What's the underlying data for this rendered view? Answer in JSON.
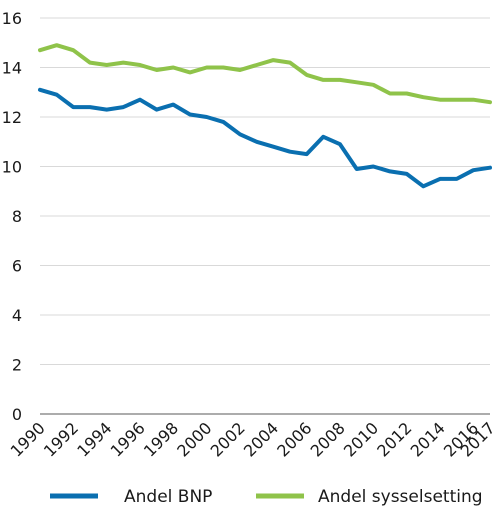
{
  "chart_data": {
    "type": "line",
    "x": [
      1990,
      1991,
      1992,
      1993,
      1994,
      1995,
      1996,
      1997,
      1998,
      1999,
      2000,
      2001,
      2002,
      2003,
      2004,
      2005,
      2006,
      2007,
      2008,
      2009,
      2010,
      2011,
      2012,
      2013,
      2014,
      2015,
      2016,
      2017
    ],
    "x_tick_labels": [
      "1990",
      "1992",
      "1994",
      "1996",
      "1998",
      "2000",
      "2002",
      "2004",
      "2006",
      "2008",
      "2010",
      "2012",
      "2014",
      "2016",
      "2017"
    ],
    "y_tick_labels": [
      "0",
      "2",
      "4",
      "6",
      "8",
      "10",
      "12",
      "14",
      "16"
    ],
    "ylim": [
      0,
      16
    ],
    "xlim": [
      1990,
      2017
    ],
    "grid": "horizontal",
    "legend_position": "bottom",
    "series": [
      {
        "name": "Andel BNP",
        "color": "#0a6fb0",
        "values": [
          13.1,
          12.9,
          12.4,
          12.4,
          12.3,
          12.4,
          12.7,
          12.3,
          12.5,
          12.1,
          12.0,
          11.8,
          11.3,
          11.0,
          10.8,
          10.6,
          10.5,
          11.2,
          10.9,
          9.9,
          10.0,
          9.8,
          9.7,
          9.2,
          9.5,
          9.5,
          9.85,
          9.95
        ]
      },
      {
        "name": "Andel sysselsetting",
        "color": "#8fc34a",
        "values": [
          14.7,
          14.9,
          14.7,
          14.2,
          14.1,
          14.2,
          14.1,
          13.9,
          14.0,
          13.8,
          14.0,
          14.0,
          13.9,
          14.1,
          14.3,
          14.2,
          13.7,
          13.5,
          13.5,
          13.4,
          13.3,
          12.95,
          12.95,
          12.8,
          12.7,
          12.7,
          12.7,
          12.6
        ]
      }
    ]
  }
}
